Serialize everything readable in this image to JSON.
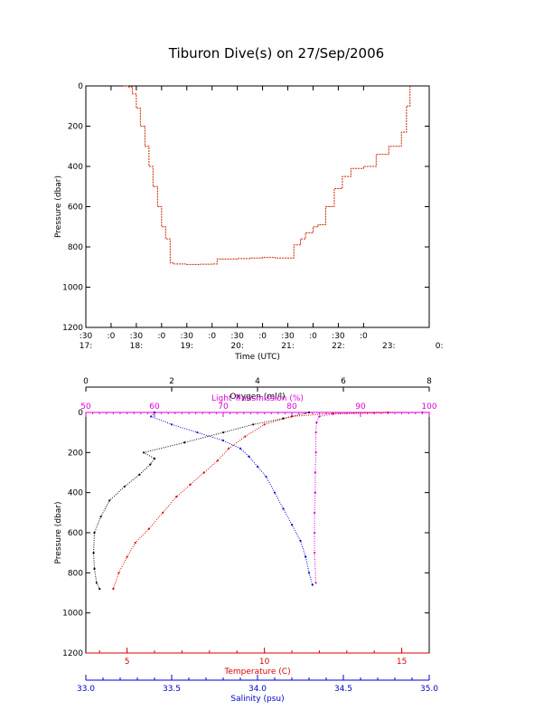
{
  "title": "Tiburon Dive(s) on 27/Sep/2006",
  "colors": {
    "axis": "#000000",
    "dive_line": "#cc2200",
    "temperature": "#dd0000",
    "salinity": "#0000cc",
    "light": "#dd00dd",
    "oxygen": "#000000"
  },
  "chart_data": [
    {
      "type": "line",
      "title": "Tiburon Dive(s) on 27/Sep/2006",
      "xlabel": "Time (UTC)",
      "ylabel": "Pressure (dbar)",
      "y_inverted": true,
      "ylim": [
        0,
        1200
      ],
      "yticks": [
        "0",
        "200",
        "400",
        "600",
        "800",
        "1000",
        "1200"
      ],
      "xlim": [
        17.5,
        24.3
      ],
      "xtick_minutes": [
        ":30",
        ":0",
        ":30",
        ":0",
        ":30",
        ":0",
        ":30",
        ":0",
        ":30",
        ":0",
        ":30",
        ":0",
        ":0"
      ],
      "xtick_hours": [
        "17:",
        "18:",
        "19:",
        "20:",
        "21:",
        "22:",
        "23:",
        "0:"
      ],
      "series": [
        {
          "x": [
            18.25,
            18.33,
            18.42,
            18.5,
            18.58,
            18.67,
            18.75,
            18.83,
            18.92,
            19.0,
            19.08,
            19.17,
            19.25,
            19.5,
            19.75,
            20.0,
            20.1,
            20.5,
            20.75,
            21.0,
            21.25,
            21.5,
            21.62,
            21.75,
            21.85,
            22.0,
            22.1,
            22.25,
            22.42,
            22.58,
            22.75,
            23.0,
            23.25,
            23.5,
            23.75,
            23.85,
            23.92
          ],
          "y": [
            0,
            5,
            40,
            110,
            200,
            300,
            400,
            500,
            600,
            700,
            760,
            880,
            885,
            887,
            886,
            885,
            860,
            858,
            855,
            852,
            855,
            855,
            790,
            760,
            730,
            700,
            690,
            600,
            510,
            450,
            410,
            400,
            340,
            300,
            230,
            100,
            0
          ]
        }
      ]
    },
    {
      "type": "scatter",
      "ylabel": "Pressure (dbar)",
      "y_inverted": true,
      "ylim": [
        0,
        1200
      ],
      "yticks": [
        "0",
        "200",
        "400",
        "600",
        "800",
        "1000",
        "1200"
      ],
      "axes": {
        "oxygen": {
          "label": "Oxygen (ml/l)",
          "range": [
            0,
            8
          ],
          "ticks": [
            "0",
            "2",
            "4",
            "6",
            "8"
          ]
        },
        "light": {
          "label": "Light Transmission (%)",
          "range": [
            50,
            100
          ],
          "ticks": [
            "50",
            "60",
            "70",
            "80",
            "90",
            "100"
          ]
        },
        "temperature": {
          "label": "Temperature (C)",
          "range": [
            3.5,
            16
          ],
          "ticks": [
            "5",
            "10",
            "15"
          ]
        },
        "salinity": {
          "label": "Salinity (psu)",
          "range": [
            33.0,
            35.0
          ],
          "ticks": [
            "33.0",
            "33.5",
            "34.0",
            "34.5",
            "35.0"
          ]
        }
      },
      "series": [
        {
          "name": "Oxygen (ml/l)",
          "x": [
            5.2,
            4.6,
            3.9,
            3.2,
            2.3,
            1.35,
            1.6,
            1.5,
            1.25,
            0.9,
            0.55,
            0.35,
            0.2,
            0.18,
            0.2,
            0.25,
            0.32
          ],
          "y": [
            0,
            30,
            60,
            100,
            150,
            200,
            230,
            260,
            310,
            370,
            440,
            520,
            600,
            700,
            780,
            850,
            880
          ]
        },
        {
          "name": "Light Transmission (%)",
          "x": [
            99,
            92,
            86,
            84,
            83.6,
            83.5,
            83.5,
            83.4,
            83.4,
            83.3,
            83.3,
            83.3,
            83.5
          ],
          "y": [
            0,
            3,
            8,
            20,
            50,
            100,
            200,
            300,
            400,
            500,
            600,
            700,
            850
          ]
        },
        {
          "name": "Temperature (C)",
          "x": [
            14.5,
            12.5,
            11.0,
            10.0,
            9.3,
            8.7,
            8.3,
            7.8,
            7.3,
            6.8,
            6.3,
            5.8,
            5.3,
            5.0,
            4.7,
            4.5
          ],
          "y": [
            0,
            5,
            20,
            60,
            120,
            180,
            240,
            300,
            360,
            420,
            500,
            580,
            650,
            720,
            800,
            880
          ]
        },
        {
          "name": "Salinity (psu)",
          "x": [
            33.4,
            33.38,
            33.5,
            33.65,
            33.8,
            33.9,
            33.95,
            34.0,
            34.05,
            34.1,
            34.15,
            34.2,
            34.25,
            34.28,
            34.3,
            34.32
          ],
          "y": [
            0,
            20,
            60,
            100,
            140,
            180,
            220,
            270,
            320,
            400,
            480,
            560,
            640,
            720,
            800,
            860
          ]
        }
      ]
    }
  ]
}
